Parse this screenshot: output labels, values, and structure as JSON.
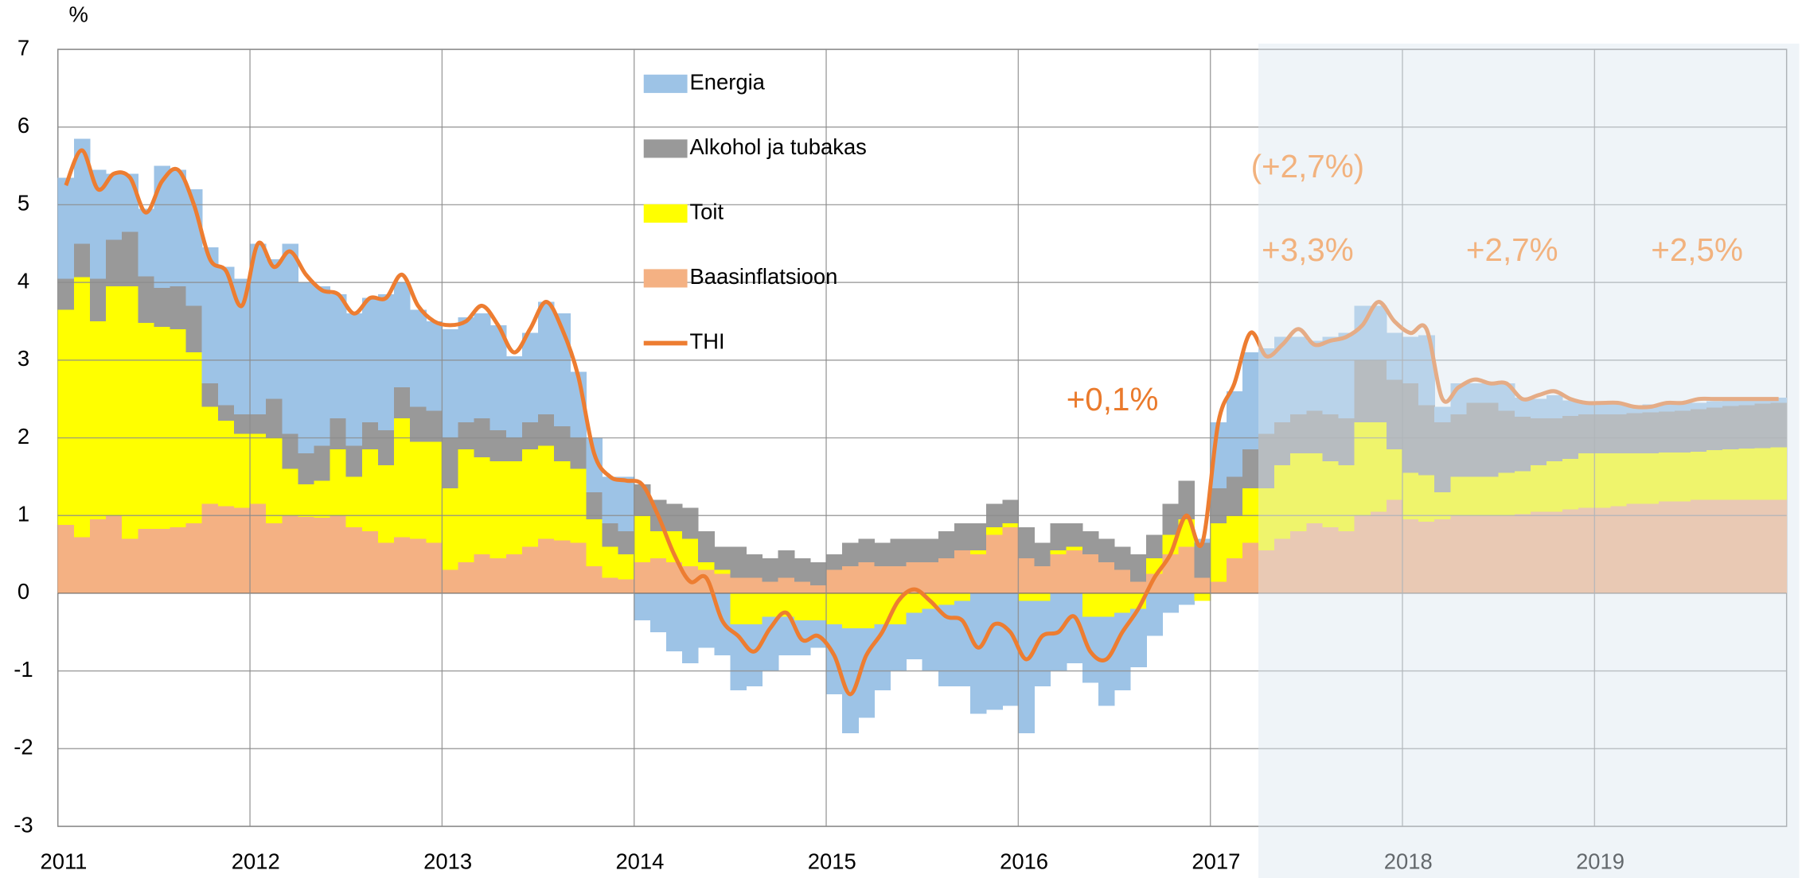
{
  "chart_data": {
    "type": "bar",
    "stacked": true,
    "y_label": "%",
    "ylim": [
      -3,
      7
    ],
    "yticks": [
      -3,
      -2,
      -1,
      0,
      1,
      2,
      3,
      4,
      5,
      6,
      7
    ],
    "grid": true,
    "forecast_from": 75,
    "forecast_shade_color": "#dce6f0",
    "categories": [
      "2011",
      null,
      null,
      null,
      null,
      null,
      null,
      null,
      null,
      null,
      null,
      null,
      "2012",
      null,
      null,
      null,
      null,
      null,
      null,
      null,
      null,
      null,
      null,
      null,
      "2013",
      null,
      null,
      null,
      null,
      null,
      null,
      null,
      null,
      null,
      null,
      null,
      "2014",
      null,
      null,
      null,
      null,
      null,
      null,
      null,
      null,
      null,
      null,
      null,
      "2015",
      null,
      null,
      null,
      null,
      null,
      null,
      null,
      null,
      null,
      null,
      null,
      "2016",
      null,
      null,
      null,
      null,
      null,
      null,
      null,
      null,
      null,
      null,
      null,
      "2017",
      null,
      null,
      null,
      null,
      null,
      null,
      null,
      null,
      null,
      null,
      null,
      "2018",
      null,
      null,
      null,
      null,
      null,
      null,
      null,
      null,
      null,
      null,
      null,
      "2019",
      null,
      null,
      null,
      null,
      null,
      null,
      null,
      null,
      null,
      null,
      null
    ],
    "series": [
      {
        "name": "Energia",
        "type": "bar",
        "color": "#9dc3e6",
        "values": [
          1.3,
          1.35,
          1.4,
          0.85,
          0.75,
          0.87,
          1.57,
          1.5,
          1.5,
          1.75,
          1.78,
          1.75,
          2.2,
          1.8,
          2.45,
          2.2,
          2.05,
          1.6,
          1.7,
          1.6,
          1.75,
          1.35,
          1.25,
          1.15,
          1.4,
          1.35,
          1.35,
          1.35,
          1.05,
          1.15,
          1.45,
          1.45,
          0.85,
          0.7,
          0.6,
          0.7,
          -0.35,
          -0.5,
          -0.75,
          -0.9,
          -0.7,
          -0.8,
          -0.85,
          -0.8,
          -0.7,
          -0.5,
          -0.45,
          -0.35,
          -0.9,
          -1.35,
          -1.15,
          -0.85,
          -0.6,
          -0.6,
          -0.8,
          -1.05,
          -1.1,
          -1.55,
          -1.5,
          -1.45,
          -1.7,
          -1.1,
          -1.0,
          -0.9,
          -0.85,
          -1.15,
          -1.0,
          -0.75,
          -0.55,
          -0.25,
          -0.15,
          0.05,
          0.85,
          1.1,
          1.25,
          1.1,
          1.1,
          1.0,
          0.9,
          1.0,
          1.1,
          0.7,
          0.7,
          0.6,
          0.6,
          0.9,
          0.2,
          0.4,
          0.25,
          0.25,
          0.35,
          0.25,
          0.25,
          0.3,
          0.2,
          0.15,
          0.15,
          0.15,
          0.1,
          0.1,
          0.1,
          0.1,
          0.08,
          0.08,
          0.08,
          0.08,
          0.07,
          0.07
        ]
      },
      {
        "name": "Alkohol ja tubakas",
        "type": "bar",
        "color": "#999999",
        "values": [
          0.4,
          0.43,
          0.55,
          0.6,
          0.7,
          0.6,
          0.5,
          0.55,
          0.6,
          0.3,
          0.2,
          0.25,
          0.25,
          0.5,
          0.45,
          0.4,
          0.45,
          0.4,
          0.4,
          0.35,
          0.45,
          0.4,
          0.45,
          0.4,
          0.65,
          0.35,
          0.5,
          0.4,
          0.3,
          0.35,
          0.4,
          0.45,
          0.4,
          0.35,
          0.3,
          0.3,
          0.4,
          0.4,
          0.35,
          0.4,
          0.4,
          0.3,
          0.4,
          0.3,
          0.3,
          0.35,
          0.3,
          0.3,
          0.2,
          0.3,
          0.3,
          0.3,
          0.35,
          0.3,
          0.3,
          0.35,
          0.35,
          0.35,
          0.3,
          0.3,
          0.4,
          0.3,
          0.35,
          0.3,
          0.3,
          0.3,
          0.3,
          0.35,
          0.3,
          0.4,
          0.5,
          0.45,
          0.45,
          0.5,
          0.5,
          0.7,
          0.55,
          0.5,
          0.55,
          0.6,
          0.6,
          0.8,
          0.8,
          0.9,
          1.15,
          0.9,
          0.9,
          0.8,
          0.95,
          0.95,
          0.8,
          0.7,
          0.6,
          0.55,
          0.55,
          0.5,
          0.5,
          0.5,
          0.52,
          0.53,
          0.53,
          0.54,
          0.55,
          0.55,
          0.56,
          0.56,
          0.57,
          0.57
        ]
      },
      {
        "name": "Toit",
        "type": "bar",
        "color": "#ffff00",
        "values": [
          2.77,
          3.35,
          2.55,
          2.95,
          3.25,
          2.65,
          2.6,
          2.55,
          2.2,
          1.25,
          1.1,
          0.95,
          0.9,
          1.1,
          0.6,
          0.42,
          0.48,
          0.85,
          0.65,
          1.05,
          1.0,
          1.53,
          1.25,
          1.3,
          1.05,
          1.45,
          1.25,
          1.25,
          1.2,
          1.25,
          1.2,
          1.02,
          0.95,
          0.6,
          0.4,
          0.32,
          0.6,
          0.35,
          0.4,
          0.35,
          0.1,
          0.05,
          -0.4,
          -0.4,
          -0.3,
          -0.3,
          -0.35,
          -0.35,
          -0.4,
          -0.45,
          -0.45,
          -0.4,
          -0.4,
          -0.25,
          -0.2,
          -0.15,
          -0.1,
          0.05,
          0.1,
          0.05,
          -0.1,
          -0.1,
          0.05,
          0.05,
          -0.3,
          -0.3,
          -0.25,
          -0.2,
          0.2,
          0.25,
          0.35,
          -0.1,
          0.75,
          0.55,
          0.7,
          0.8,
          0.95,
          1.0,
          0.9,
          0.85,
          0.85,
          1.2,
          1.15,
          0.65,
          0.6,
          0.6,
          0.35,
          0.5,
          0.5,
          0.5,
          0.55,
          0.55,
          0.6,
          0.65,
          0.65,
          0.7,
          0.7,
          0.68,
          0.65,
          0.65,
          0.63,
          0.63,
          0.62,
          0.64,
          0.65,
          0.66,
          0.67,
          0.68
        ]
      },
      {
        "name": "Baasinflatsioon",
        "type": "bar",
        "color": "#f4b183",
        "values": [
          0.88,
          0.72,
          0.95,
          1.0,
          0.7,
          0.83,
          0.83,
          0.85,
          0.9,
          1.15,
          1.12,
          1.1,
          1.15,
          0.9,
          1.0,
          0.98,
          0.97,
          1.0,
          0.85,
          0.8,
          0.65,
          0.72,
          0.7,
          0.65,
          0.3,
          0.4,
          0.5,
          0.45,
          0.5,
          0.6,
          0.7,
          0.68,
          0.65,
          0.35,
          0.2,
          0.18,
          0.4,
          0.45,
          0.4,
          0.35,
          0.3,
          0.25,
          0.2,
          0.2,
          0.15,
          0.2,
          0.15,
          0.1,
          0.3,
          0.35,
          0.4,
          0.35,
          0.35,
          0.4,
          0.4,
          0.45,
          0.55,
          0.5,
          0.75,
          0.85,
          0.45,
          0.35,
          0.5,
          0.55,
          0.5,
          0.4,
          0.3,
          0.15,
          0.25,
          0.5,
          0.6,
          0.2,
          0.15,
          0.45,
          0.65,
          0.55,
          0.7,
          0.8,
          0.9,
          0.85,
          0.8,
          1.0,
          1.05,
          1.2,
          0.95,
          0.92,
          0.95,
          1.0,
          1.0,
          1.0,
          1.0,
          1.02,
          1.05,
          1.05,
          1.08,
          1.1,
          1.1,
          1.12,
          1.15,
          1.15,
          1.18,
          1.18,
          1.2,
          1.2,
          1.2,
          1.2,
          1.2,
          1.2
        ]
      },
      {
        "name": "THI",
        "type": "line",
        "color": "#ed7d31",
        "values": [
          5.25,
          5.7,
          5.2,
          5.4,
          5.35,
          4.9,
          5.3,
          5.45,
          5.0,
          4.3,
          4.15,
          3.7,
          4.5,
          4.2,
          4.4,
          4.1,
          3.9,
          3.85,
          3.6,
          3.8,
          3.8,
          4.1,
          3.7,
          3.5,
          3.45,
          3.5,
          3.7,
          3.45,
          3.1,
          3.4,
          3.75,
          3.4,
          2.8,
          1.8,
          1.5,
          1.45,
          1.4,
          1.0,
          0.5,
          0.15,
          0.2,
          -0.35,
          -0.55,
          -0.75,
          -0.45,
          -0.25,
          -0.6,
          -0.55,
          -0.8,
          -1.3,
          -0.8,
          -0.5,
          -0.1,
          0.05,
          -0.1,
          -0.3,
          -0.35,
          -0.7,
          -0.4,
          -0.5,
          -0.85,
          -0.55,
          -0.5,
          -0.3,
          -0.75,
          -0.85,
          -0.5,
          -0.2,
          0.2,
          0.5,
          1.0,
          0.65,
          2.2,
          2.7,
          3.35,
          3.05,
          3.2,
          3.4,
          3.2,
          3.25,
          3.3,
          3.45,
          3.75,
          3.5,
          3.35,
          3.4,
          2.5,
          2.65,
          2.75,
          2.7,
          2.7,
          2.5,
          2.55,
          2.6,
          2.5,
          2.45,
          2.45,
          2.45,
          2.4,
          2.4,
          2.45,
          2.45,
          2.5,
          2.5,
          2.5,
          2.5,
          2.5,
          2.5
        ]
      }
    ],
    "annotations": [
      {
        "text": "+0,1%",
        "color": "#ea7a2c"
      },
      {
        "text": "(+2,7%)",
        "color": "#f2b27e"
      },
      {
        "text": "+3,3%",
        "color": "#f2b27e"
      },
      {
        "text": "+2,7%",
        "color": "#f2b27e"
      },
      {
        "text": "+2,5%",
        "color": "#f2b27e"
      }
    ]
  }
}
